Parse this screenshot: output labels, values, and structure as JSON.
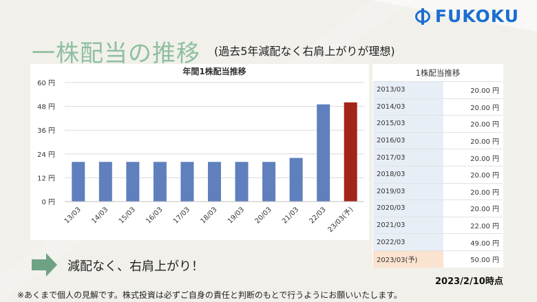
{
  "logo": {
    "text": "FUKOKU"
  },
  "heading": {
    "main": "一株配当の推移",
    "sub": "(過去5年減配なく右肩上がりが理想)"
  },
  "chart_data": {
    "type": "bar",
    "title": "年間1株配当推移",
    "categories": [
      "13/03",
      "14/03",
      "15/03",
      "16/03",
      "17/03",
      "18/03",
      "19/03",
      "20/03",
      "21/03",
      "22/03",
      "23/03(予)"
    ],
    "values": [
      20,
      20,
      20,
      20,
      20,
      20,
      20,
      20,
      22,
      49,
      50
    ],
    "ylim": [
      0,
      60
    ],
    "yticks": [
      "0 円",
      "12 円",
      "24 円",
      "36 円",
      "48 円",
      "60 円"
    ],
    "ytick_values": [
      0,
      12,
      24,
      36,
      48,
      60
    ],
    "grid": true,
    "colors": {
      "actual": "#5f7fbd",
      "forecast": "#a32418"
    }
  },
  "table": {
    "header": "1株配当推移",
    "rows": [
      {
        "year": "2013/03",
        "value": "20.00 円"
      },
      {
        "year": "2014/03",
        "value": "20.00 円"
      },
      {
        "year": "2015/03",
        "value": "20.00 円"
      },
      {
        "year": "2016/03",
        "value": "20.00 円"
      },
      {
        "year": "2017/03",
        "value": "20.00 円"
      },
      {
        "year": "2018/03",
        "value": "20.00 円"
      },
      {
        "year": "2019/03",
        "value": "20.00 円"
      },
      {
        "year": "2020/03",
        "value": "20.00 円"
      },
      {
        "year": "2021/03",
        "value": "22.00 円"
      },
      {
        "year": "2022/03",
        "value": "49.00 円"
      },
      {
        "year": "2023/03(予)",
        "value": "50.00 円"
      }
    ]
  },
  "caption": "減配なく、右肩上がり！",
  "timestamp": "2023/2/10時点",
  "footnote": "※あくまで個人の見解です。株式投資は必ずご自身の責任と判断のもとで行うようにお願いいたします。"
}
